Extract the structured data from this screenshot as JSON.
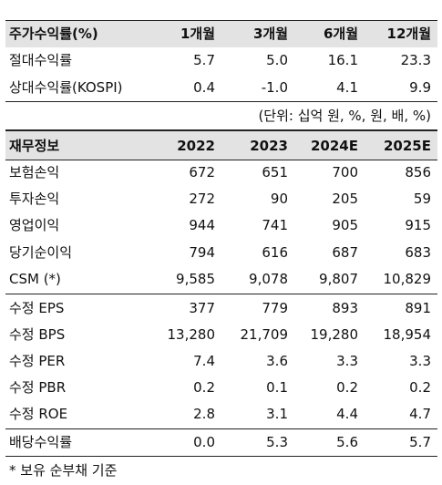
{
  "returns_table": {
    "header": [
      "주가수익률(%)",
      "1개월",
      "3개월",
      "6개월",
      "12개월"
    ],
    "rows": [
      {
        "label": "절대수익률",
        "values": [
          "5.7",
          "5.0",
          "16.1",
          "23.3"
        ]
      },
      {
        "label": "상대수익률(KOSPI)",
        "values": [
          "0.4",
          "-1.0",
          "4.1",
          "9.9"
        ]
      }
    ]
  },
  "unit_note": "(단위: 십억 원, %, 원, 배, %)",
  "financials_table": {
    "header": [
      "재무정보",
      "2022",
      "2023",
      "2024E",
      "2025E"
    ],
    "groups": [
      [
        {
          "label": "보험손익",
          "values": [
            "672",
            "651",
            "700",
            "856"
          ]
        },
        {
          "label": "투자손익",
          "values": [
            "272",
            "90",
            "205",
            "59"
          ]
        },
        {
          "label": "영업이익",
          "values": [
            "944",
            "741",
            "905",
            "915"
          ]
        },
        {
          "label": "당기순이익",
          "values": [
            "794",
            "616",
            "687",
            "683"
          ]
        },
        {
          "label": "CSM (*)",
          "values": [
            "9,585",
            "9,078",
            "9,807",
            "10,829"
          ]
        }
      ],
      [
        {
          "label": "수정 EPS",
          "values": [
            "377",
            "779",
            "893",
            "891"
          ]
        },
        {
          "label": "수정 BPS",
          "values": [
            "13,280",
            "21,709",
            "19,280",
            "18,954"
          ]
        },
        {
          "label": "수정 PER",
          "values": [
            "7.4",
            "3.6",
            "3.3",
            "3.3"
          ]
        },
        {
          "label": "수정 PBR",
          "values": [
            "0.2",
            "0.1",
            "0.2",
            "0.2"
          ]
        },
        {
          "label": "수정 ROE",
          "values": [
            "2.8",
            "3.1",
            "4.4",
            "4.7"
          ]
        }
      ],
      [
        {
          "label": "배당수익률",
          "values": [
            "0.0",
            "5.3",
            "5.6",
            "5.7"
          ]
        }
      ]
    ]
  },
  "footnote": "* 보유 순부채 기준"
}
